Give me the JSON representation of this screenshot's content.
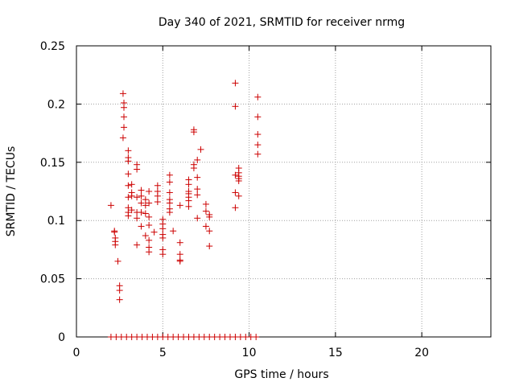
{
  "chart_data": {
    "type": "scatter",
    "title": "Day 340 of 2021, SRMTID for receiver nrmg",
    "xlabel": "GPS time / hours",
    "ylabel": "SRMTID / TECUs",
    "xlim": [
      0,
      24
    ],
    "ylim": [
      0,
      0.25
    ],
    "grid": true,
    "x_ticks": [
      0,
      5,
      10,
      15,
      20
    ],
    "x_tick_labels": [
      "0",
      "5",
      "10",
      "15",
      "20"
    ],
    "y_ticks": [
      0,
      0.05,
      0.1,
      0.15,
      0.2,
      0.25
    ],
    "y_tick_labels": [
      "0",
      "0.05",
      "0.1",
      "0.15",
      "0.2",
      "0.25"
    ],
    "marker": "+",
    "marker_color": "#cc0000",
    "series": [
      {
        "name": "SRMTID",
        "points": [
          [
            2.0,
            0.113
          ],
          [
            2.2,
            0.091
          ],
          [
            2.2,
            0.09
          ],
          [
            2.25,
            0.085
          ],
          [
            2.25,
            0.082
          ],
          [
            2.25,
            0.079
          ],
          [
            2.4,
            0.065
          ],
          [
            2.5,
            0.044
          ],
          [
            2.5,
            0.04
          ],
          [
            2.5,
            0.032
          ],
          [
            2.7,
            0.209
          ],
          [
            2.75,
            0.201
          ],
          [
            2.75,
            0.197
          ],
          [
            2.75,
            0.189
          ],
          [
            2.75,
            0.18
          ],
          [
            2.7,
            0.171
          ],
          [
            3.0,
            0.16
          ],
          [
            3.0,
            0.154
          ],
          [
            3.0,
            0.151
          ],
          [
            3.0,
            0.14
          ],
          [
            3.0,
            0.13
          ],
          [
            3.0,
            0.12
          ],
          [
            3.0,
            0.111
          ],
          [
            3.0,
            0.107
          ],
          [
            3.0,
            0.104
          ],
          [
            3.2,
            0.131
          ],
          [
            3.2,
            0.124
          ],
          [
            3.2,
            0.121
          ],
          [
            3.2,
            0.109
          ],
          [
            3.5,
            0.148
          ],
          [
            3.5,
            0.144
          ],
          [
            3.5,
            0.12
          ],
          [
            3.5,
            0.107
          ],
          [
            3.5,
            0.102
          ],
          [
            3.5,
            0.079
          ],
          [
            3.75,
            0.126
          ],
          [
            3.75,
            0.121
          ],
          [
            3.75,
            0.115
          ],
          [
            3.75,
            0.107
          ],
          [
            3.75,
            0.095
          ],
          [
            4.0,
            0.118
          ],
          [
            4.0,
            0.113
          ],
          [
            4.0,
            0.106
          ],
          [
            4.0,
            0.087
          ],
          [
            4.2,
            0.125
          ],
          [
            4.2,
            0.115
          ],
          [
            4.2,
            0.103
          ],
          [
            4.2,
            0.096
          ],
          [
            4.2,
            0.083
          ],
          [
            4.2,
            0.077
          ],
          [
            4.2,
            0.073
          ],
          [
            4.5,
            0.09
          ],
          [
            4.7,
            0.13
          ],
          [
            4.7,
            0.125
          ],
          [
            4.7,
            0.121
          ],
          [
            4.7,
            0.116
          ],
          [
            5.0,
            0.101
          ],
          [
            5.0,
            0.097
          ],
          [
            5.0,
            0.093
          ],
          [
            5.0,
            0.088
          ],
          [
            5.0,
            0.085
          ],
          [
            5.0,
            0.075
          ],
          [
            5.0,
            0.071
          ],
          [
            5.4,
            0.139
          ],
          [
            5.4,
            0.133
          ],
          [
            5.4,
            0.124
          ],
          [
            5.4,
            0.118
          ],
          [
            5.4,
            0.115
          ],
          [
            5.4,
            0.11
          ],
          [
            5.4,
            0.107
          ],
          [
            5.6,
            0.091
          ],
          [
            6.0,
            0.113
          ],
          [
            6.0,
            0.081
          ],
          [
            6.0,
            0.071
          ],
          [
            6.0,
            0.066
          ],
          [
            6.0,
            0.065
          ],
          [
            6.5,
            0.135
          ],
          [
            6.5,
            0.131
          ],
          [
            6.5,
            0.125
          ],
          [
            6.5,
            0.123
          ],
          [
            6.5,
            0.12
          ],
          [
            6.5,
            0.117
          ],
          [
            6.5,
            0.112
          ],
          [
            6.8,
            0.178
          ],
          [
            6.8,
            0.176
          ],
          [
            6.8,
            0.148
          ],
          [
            6.8,
            0.145
          ],
          [
            7.0,
            0.152
          ],
          [
            7.0,
            0.137
          ],
          [
            7.0,
            0.127
          ],
          [
            7.0,
            0.122
          ],
          [
            7.0,
            0.102
          ],
          [
            7.2,
            0.161
          ],
          [
            7.5,
            0.114
          ],
          [
            7.5,
            0.108
          ],
          [
            7.5,
            0.095
          ],
          [
            7.7,
            0.105
          ],
          [
            7.7,
            0.103
          ],
          [
            7.7,
            0.091
          ],
          [
            7.7,
            0.078
          ],
          [
            9.2,
            0.218
          ],
          [
            9.2,
            0.198
          ],
          [
            9.2,
            0.139
          ],
          [
            9.2,
            0.124
          ],
          [
            9.2,
            0.111
          ],
          [
            9.4,
            0.145
          ],
          [
            9.4,
            0.141
          ],
          [
            9.4,
            0.138
          ],
          [
            9.4,
            0.136
          ],
          [
            9.4,
            0.134
          ],
          [
            9.4,
            0.121
          ],
          [
            10.5,
            0.206
          ],
          [
            10.5,
            0.189
          ],
          [
            10.5,
            0.174
          ],
          [
            10.5,
            0.165
          ],
          [
            10.5,
            0.157
          ],
          [
            2.0,
            0.0
          ],
          [
            2.3,
            0.0
          ],
          [
            2.6,
            0.0
          ],
          [
            2.9,
            0.0
          ],
          [
            3.2,
            0.0
          ],
          [
            3.5,
            0.0
          ],
          [
            3.8,
            0.0
          ],
          [
            4.1,
            0.0
          ],
          [
            4.4,
            0.0
          ],
          [
            4.7,
            0.0
          ],
          [
            5.0,
            0.0
          ],
          [
            5.3,
            0.0
          ],
          [
            5.6,
            0.0
          ],
          [
            5.9,
            0.0
          ],
          [
            6.2,
            0.0
          ],
          [
            6.5,
            0.0
          ],
          [
            6.8,
            0.0
          ],
          [
            7.1,
            0.0
          ],
          [
            7.4,
            0.0
          ],
          [
            7.7,
            0.0
          ],
          [
            8.0,
            0.0
          ],
          [
            8.3,
            0.0
          ],
          [
            8.6,
            0.0
          ],
          [
            8.9,
            0.0
          ],
          [
            9.2,
            0.0
          ],
          [
            9.5,
            0.0
          ],
          [
            9.8,
            0.0
          ],
          [
            10.1,
            0.0
          ],
          [
            10.4,
            0.0
          ]
        ]
      }
    ]
  }
}
